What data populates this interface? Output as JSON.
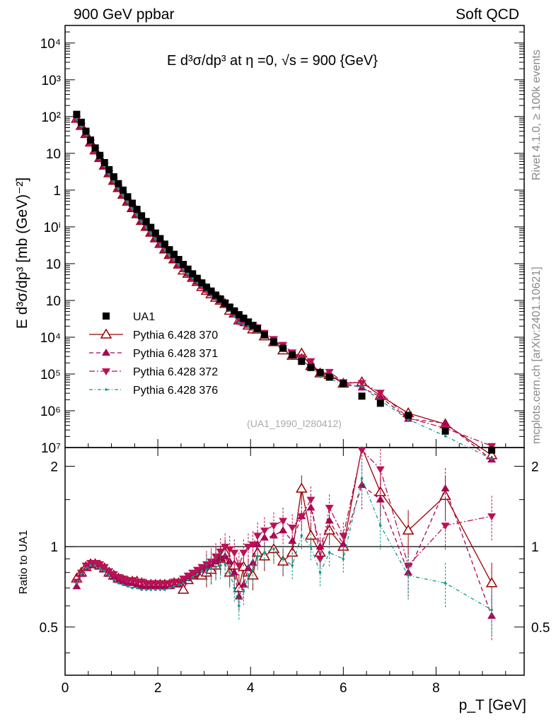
{
  "header": {
    "left": "900 GeV ppbar",
    "right": "Soft QCD",
    "side_top": "Rivet 4.1.0, ≥ 100k events",
    "side_bottom": "mcplots.cern.ch [arXiv:2401.10621]",
    "analysis_id": "(UA1_1990_I280412)"
  },
  "colors": {
    "data": "#000000",
    "p370": "#990000",
    "p371": "#aa0055",
    "p372": "#bb1155",
    "p376": "#119988"
  },
  "chart_data": {
    "type": "scatter",
    "title": "E  d³σ/dp³ at η =0, √s = 900 {GeV}",
    "xlabel": "p_T [GeV]",
    "ylabel": "E d³σ/dp³ [mb (GeV)⁻²]",
    "ratio_ylabel": "Ratio to UA1",
    "xlim": [
      0,
      9.9
    ],
    "ylim_log": [
      1e-07,
      30000.0
    ],
    "ratio_ylim": [
      0.33,
      2.35
    ],
    "x_ticks": [
      "0",
      "2",
      "4",
      "6",
      "8"
    ],
    "y_ticks": [
      "10⁷",
      "10⁶",
      "10⁵",
      "10⁴",
      "10⁳",
      "10⁲",
      "10ⁱ",
      "1",
      "10",
      "10²",
      "10³",
      "10⁴"
    ],
    "ratio_ticks": [
      "0.5",
      "1",
      "2"
    ],
    "legend": [
      "UA1",
      "Pythia 6.428 370",
      "Pythia 6.428 371",
      "Pythia 6.428 372",
      "Pythia 6.428 376"
    ],
    "x": [
      0.25,
      0.35,
      0.45,
      0.55,
      0.65,
      0.75,
      0.85,
      0.95,
      1.05,
      1.15,
      1.25,
      1.35,
      1.45,
      1.55,
      1.65,
      1.75,
      1.85,
      1.95,
      2.05,
      2.15,
      2.25,
      2.35,
      2.45,
      2.55,
      2.65,
      2.75,
      2.85,
      2.95,
      3.05,
      3.15,
      3.25,
      3.35,
      3.45,
      3.55,
      3.65,
      3.75,
      3.85,
      3.95,
      4.05,
      4.15,
      4.3,
      4.5,
      4.7,
      4.9,
      5.1,
      5.3,
      5.5,
      5.7,
      6.0,
      6.4,
      6.8,
      7.4,
      8.2,
      9.2
    ],
    "series": [
      {
        "name": "UA1",
        "values": [
          115,
          70,
          40,
          23,
          14,
          8.8,
          5.6,
          3.6,
          2.3,
          1.5,
          1.0,
          0.66,
          0.44,
          0.3,
          0.2,
          0.14,
          0.097,
          0.068,
          0.048,
          0.034,
          0.024,
          0.018,
          0.013,
          0.0095,
          0.0071,
          0.0053,
          0.004,
          0.003,
          0.0023,
          0.0018,
          0.0014,
          0.0011,
          0.00085,
          0.00066,
          0.00052,
          0.00041,
          0.00033,
          0.00026,
          0.00021,
          0.00017,
          0.000115,
          7.5e-05,
          5e-05,
          3.3e-05,
          2.2e-05,
          1.5e-05,
          1.1e-05,
          8.2e-06,
          5.5e-06,
          2.5e-06,
          1.6e-06,
          7.5e-07,
          2.8e-07,
          8.5e-08
        ],
        "ratio": [
          1,
          1,
          1,
          1,
          1,
          1,
          1,
          1,
          1,
          1,
          1,
          1,
          1,
          1,
          1,
          1,
          1,
          1,
          1,
          1,
          1,
          1,
          1,
          1,
          1,
          1,
          1,
          1,
          1,
          1,
          1,
          1,
          1,
          1,
          1,
          1,
          1,
          1,
          1,
          1,
          1,
          1,
          1,
          1,
          1,
          1,
          1,
          1,
          1,
          1,
          1,
          1,
          1,
          1
        ]
      },
      {
        "name": "Pythia 6.428 370",
        "ratio": [
          0.76,
          0.8,
          0.84,
          0.86,
          0.86,
          0.85,
          0.83,
          0.8,
          0.78,
          0.76,
          0.75,
          0.74,
          0.74,
          0.74,
          0.73,
          0.72,
          0.72,
          0.72,
          0.72,
          0.72,
          0.72,
          0.73,
          0.73,
          0.69,
          0.75,
          0.78,
          0.8,
          0.78,
          0.8,
          0.82,
          0.85,
          0.9,
          0.95,
          0.8,
          0.85,
          0.7,
          0.84,
          0.8,
          0.78,
          0.95,
          0.92,
          0.98,
          0.88,
          0.95,
          1.65,
          1.1,
          0.95,
          1.15,
          1.0,
          2.4,
          1.6,
          1.15,
          1.55,
          0.73
        ]
      },
      {
        "name": "Pythia 6.428 371",
        "ratio": [
          0.71,
          0.79,
          0.83,
          0.86,
          0.86,
          0.84,
          0.82,
          0.79,
          0.77,
          0.75,
          0.74,
          0.73,
          0.73,
          0.72,
          0.71,
          0.71,
          0.71,
          0.71,
          0.71,
          0.71,
          0.71,
          0.72,
          0.72,
          0.74,
          0.76,
          0.78,
          0.8,
          0.82,
          0.84,
          0.86,
          0.88,
          0.9,
          0.92,
          0.88,
          0.8,
          0.65,
          0.72,
          0.83,
          0.87,
          1.02,
          1.08,
          1.1,
          1.15,
          1.05,
          1.3,
          1.4,
          1.0,
          1.25,
          1.02,
          1.7,
          1.5,
          0.8,
          1.65,
          0.55
        ]
      },
      {
        "name": "Pythia 6.428 372",
        "ratio": [
          0.74,
          0.8,
          0.85,
          0.87,
          0.87,
          0.86,
          0.84,
          0.81,
          0.79,
          0.77,
          0.76,
          0.75,
          0.75,
          0.74,
          0.74,
          0.73,
          0.73,
          0.73,
          0.73,
          0.73,
          0.73,
          0.74,
          0.74,
          0.76,
          0.78,
          0.8,
          0.82,
          0.84,
          0.86,
          0.88,
          0.92,
          0.96,
          1.0,
          0.98,
          0.95,
          0.85,
          0.95,
          1.0,
          1.02,
          1.1,
          1.15,
          1.2,
          1.25,
          1.18,
          1.3,
          1.5,
          0.9,
          1.4,
          1.1,
          2.3,
          1.95,
          0.85,
          1.2,
          1.3
        ]
      },
      {
        "name": "Pythia 6.428 376",
        "ratio": [
          0.73,
          0.79,
          0.83,
          0.85,
          0.85,
          0.83,
          0.81,
          0.78,
          0.75,
          0.73,
          0.72,
          0.71,
          0.7,
          0.7,
          0.69,
          0.69,
          0.69,
          0.69,
          0.69,
          0.69,
          0.7,
          0.71,
          0.72,
          0.73,
          0.75,
          0.77,
          0.79,
          0.81,
          0.82,
          0.83,
          0.84,
          0.85,
          0.86,
          0.8,
          0.7,
          0.6,
          0.68,
          0.78,
          0.82,
          0.92,
          0.95,
          0.98,
          0.9,
          0.85,
          1.1,
          1.0,
          0.8,
          0.95,
          0.9,
          1.8,
          1.2,
          0.78,
          0.73,
          0.58
        ]
      }
    ]
  }
}
